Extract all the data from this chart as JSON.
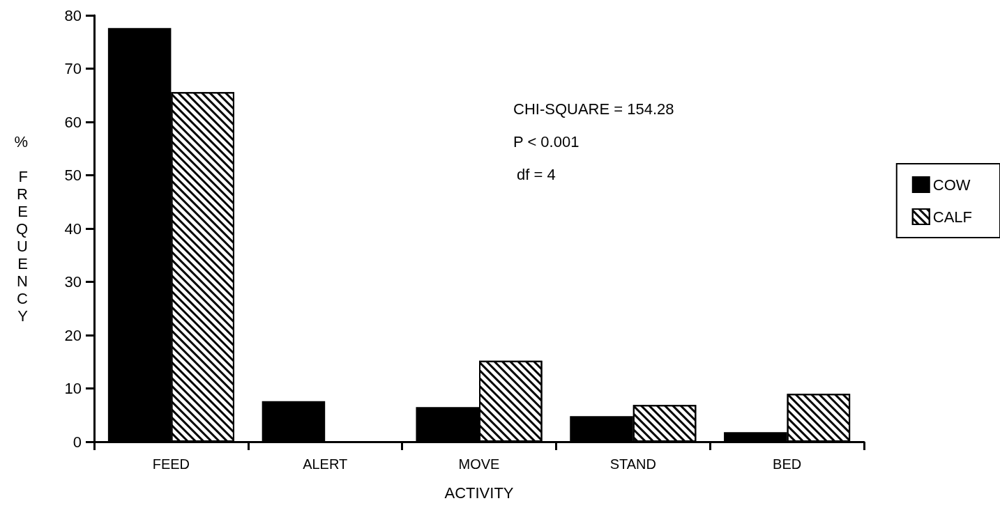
{
  "chart_data": {
    "type": "bar",
    "xlabel": "ACTIVITY",
    "ylabel": "% FREQUENCY",
    "categories": [
      "FEED",
      "ALERT",
      "MOVE",
      "STAND",
      "BED"
    ],
    "series": [
      {
        "name": "COW",
        "color": "#000000",
        "values": [
          77.6,
          7.6,
          6.5,
          4.8,
          1.8
        ]
      },
      {
        "name": "CALF",
        "color": "#ffffff",
        "values": [
          65.6,
          0,
          15.2,
          6.9,
          9.0
        ]
      }
    ],
    "ylim": [
      0,
      80
    ],
    "yticks": [
      0,
      10,
      20,
      30,
      40,
      50,
      60,
      70,
      80
    ],
    "grid": false,
    "legend": "right",
    "annotations": [
      "CHI-SQUARE = 154.28",
      "P < 0.001",
      "df = 4"
    ]
  }
}
